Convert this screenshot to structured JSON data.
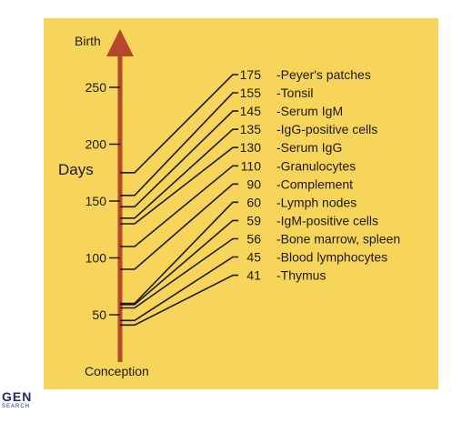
{
  "axis": {
    "top_label": "Birth",
    "bottom_label": "Conception",
    "unit_label": "Days",
    "ticks": [
      {
        "value": 250,
        "label": "250"
      },
      {
        "value": 200,
        "label": "200"
      },
      {
        "value": 150,
        "label": "150"
      },
      {
        "value": 100,
        "label": "100"
      },
      {
        "value": 50,
        "label": "50"
      }
    ]
  },
  "chart_data": {
    "type": "timeline",
    "axis_range": [
      0,
      270
    ],
    "events": [
      {
        "value": 175,
        "label": "175",
        "name": "-Peyer's patches"
      },
      {
        "value": 155,
        "label": "155",
        "name": "-Tonsil"
      },
      {
        "value": 145,
        "label": "145",
        "name": "-Serum IgM"
      },
      {
        "value": 135,
        "label": "135",
        "name": "-IgG-positive cells"
      },
      {
        "value": 130,
        "label": "130",
        "name": "-Serum IgG"
      },
      {
        "value": 110,
        "label": "110",
        "name": "-Granulocytes"
      },
      {
        "value": 90,
        "label": "90",
        "name": "-Complement"
      },
      {
        "value": 60,
        "label": "60",
        "name": "-Lymph nodes"
      },
      {
        "value": 59,
        "label": "59",
        "name": "-IgM-positive cells"
      },
      {
        "value": 56,
        "label": "56",
        "name": "-Bone marrow, spleen"
      },
      {
        "value": 45,
        "label": "45",
        "name": "-Blood lymphocytes"
      },
      {
        "value": 41,
        "label": "41",
        "name": "-Thymus"
      }
    ]
  },
  "colors": {
    "background": "#F7D45A",
    "axis": "#B5472A",
    "line": "#1a1a1a"
  },
  "logo": {
    "main": "GEN",
    "sub": "SEARCH"
  }
}
